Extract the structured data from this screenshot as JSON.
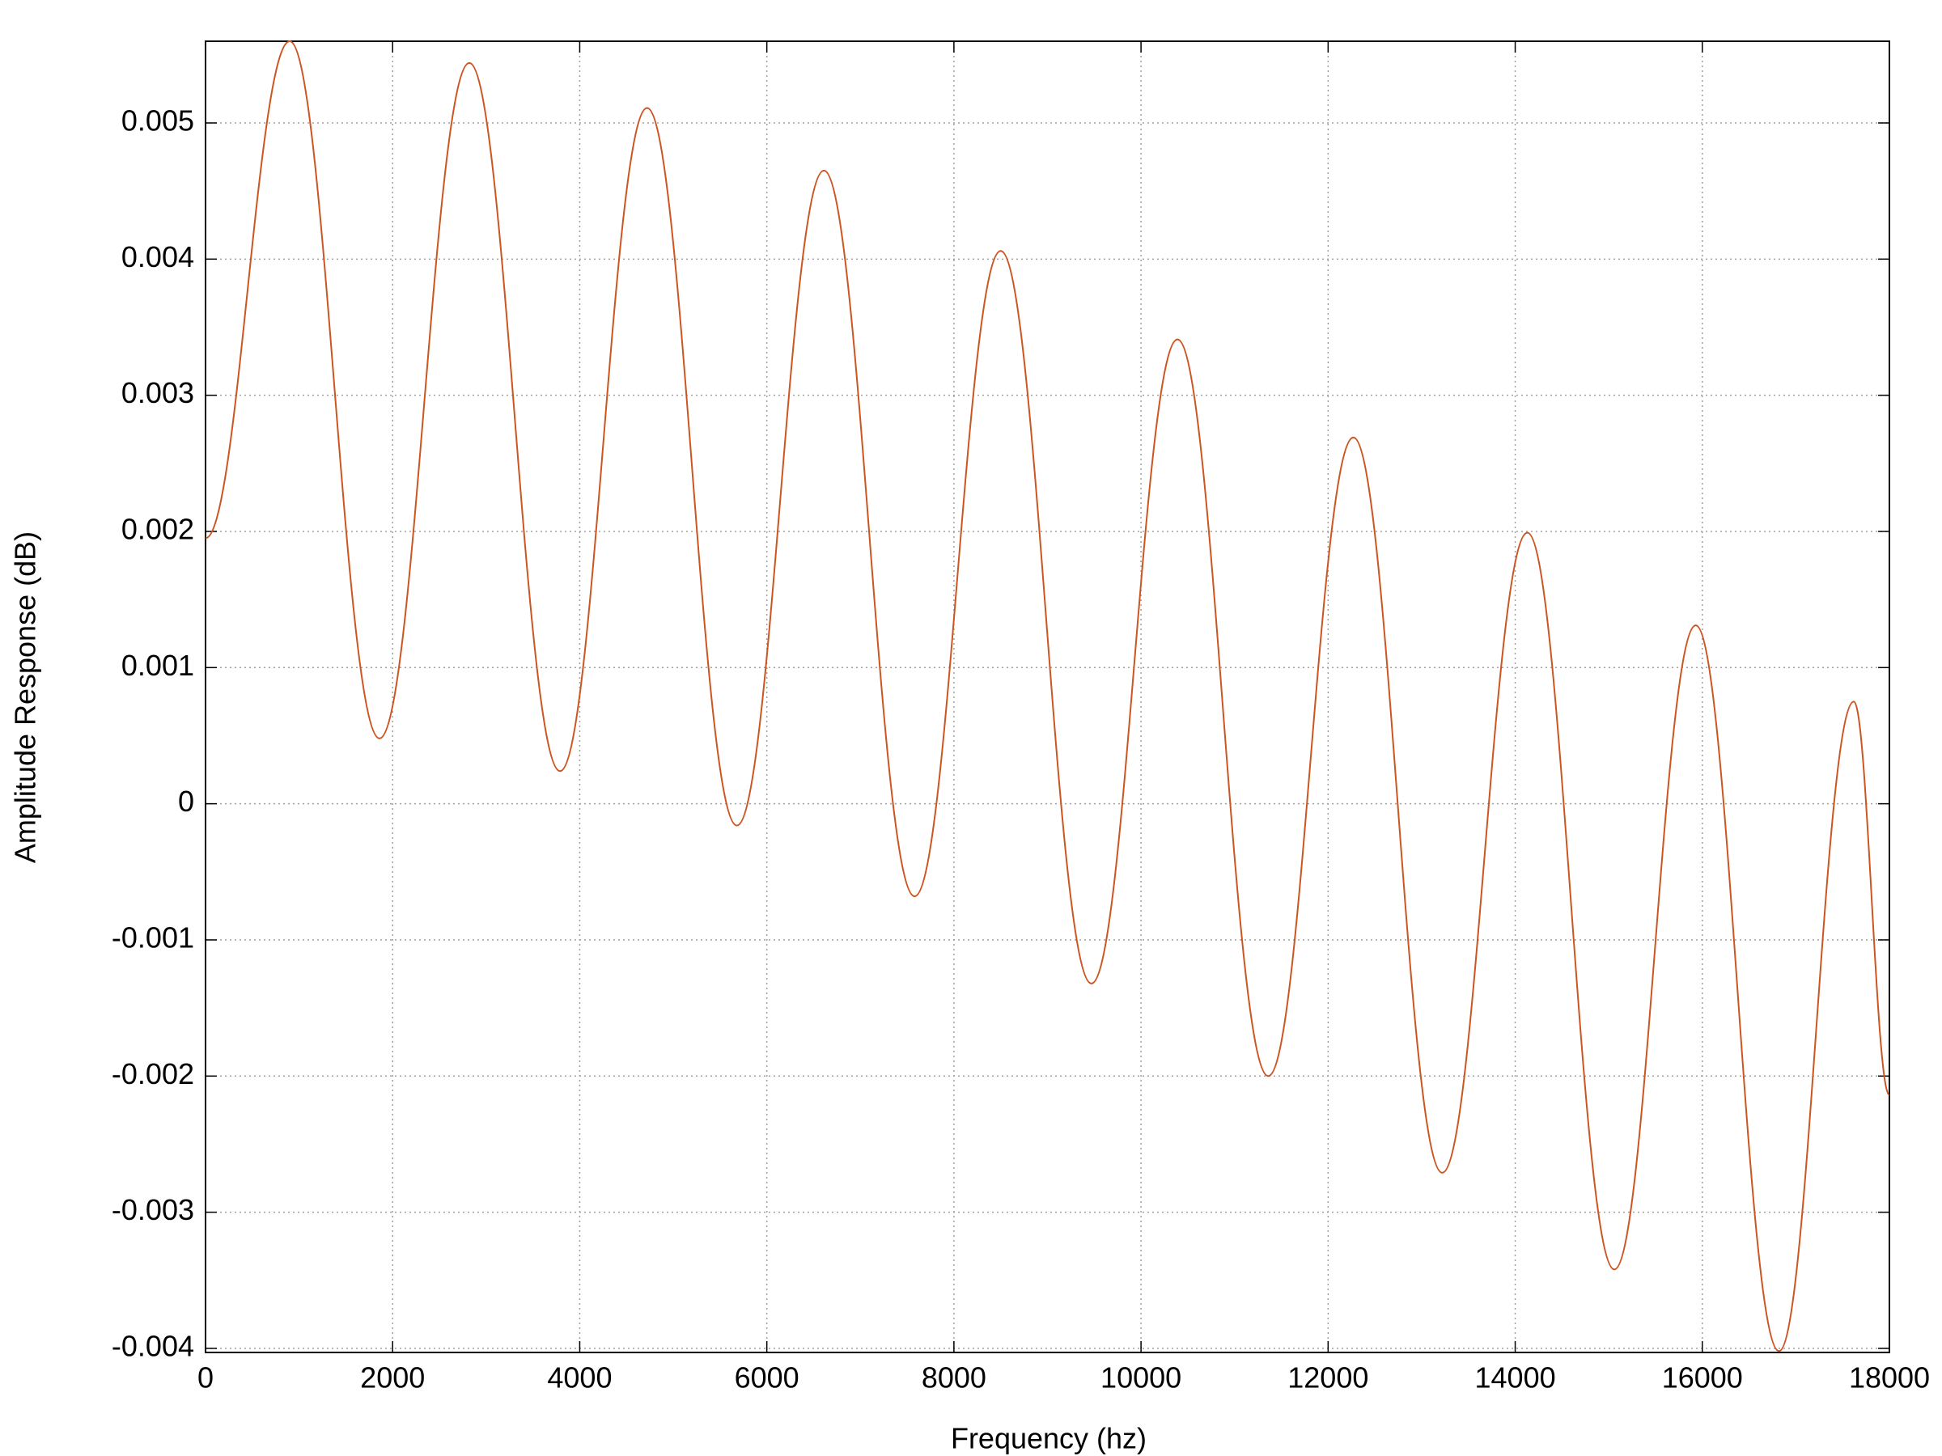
{
  "chart_data": {
    "type": "line",
    "x_label": "Frequency (hz)",
    "y_label": "Amplitude Response (dB)",
    "x": [
      0,
      900,
      1860,
      2820,
      3790,
      4720,
      5680,
      6610,
      7580,
      8500,
      9470,
      10390,
      11360,
      12270,
      13220,
      14130,
      15060,
      15930,
      16820,
      17620,
      18000
    ],
    "series": [
      {
        "color": "#cc5522",
        "values": [
          0.00195,
          0.0056,
          0.00048,
          0.00544,
          0.00024,
          0.00511,
          -0.00016,
          0.00465,
          -0.00068,
          0.00406,
          -0.00132,
          0.00341,
          -0.002,
          0.00269,
          -0.00271,
          0.00199,
          -0.00342,
          0.00131,
          -0.00402,
          0.00075,
          -0.00214
        ]
      }
    ],
    "xlim": [
      0,
      18000
    ],
    "ylim": [
      -0.00403,
      0.0056
    ],
    "xticks": [
      0,
      2000,
      4000,
      6000,
      8000,
      10000,
      12000,
      14000,
      16000,
      18000
    ],
    "yticks": [
      -0.004,
      -0.003,
      -0.002,
      -0.001,
      0,
      0.001,
      0.002,
      0.003,
      0.004,
      0.005
    ],
    "grid": true
  }
}
